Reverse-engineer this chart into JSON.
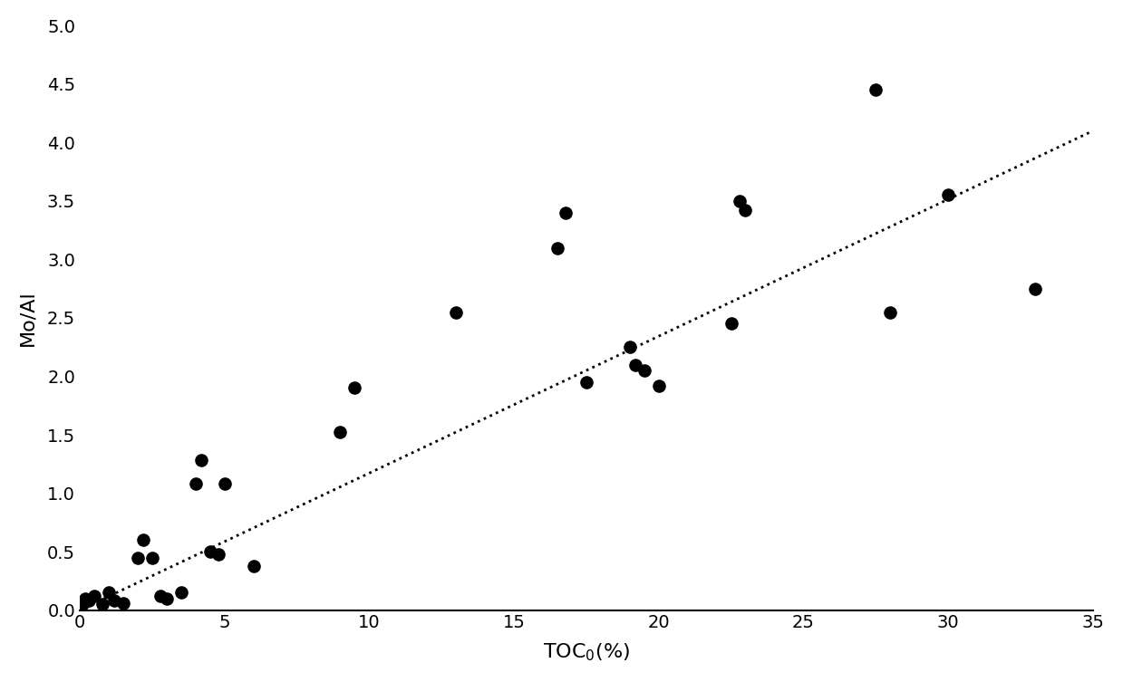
{
  "x": [
    0.1,
    0.2,
    0.3,
    0.5,
    0.8,
    1.0,
    1.2,
    1.5,
    2.0,
    2.2,
    2.5,
    2.8,
    3.0,
    3.5,
    4.0,
    4.2,
    4.5,
    4.8,
    5.0,
    6.0,
    9.0,
    9.5,
    13.0,
    16.5,
    16.8,
    17.5,
    19.0,
    19.2,
    19.5,
    20.0,
    22.5,
    22.8,
    23.0,
    27.5,
    28.0,
    30.0,
    33.0
  ],
  "y": [
    0.05,
    0.1,
    0.08,
    0.12,
    0.05,
    0.15,
    0.08,
    0.06,
    0.45,
    0.6,
    0.45,
    0.12,
    0.1,
    0.15,
    1.08,
    1.28,
    0.5,
    0.48,
    1.08,
    0.38,
    1.52,
    1.9,
    2.55,
    3.1,
    3.4,
    1.95,
    2.25,
    2.1,
    2.05,
    1.92,
    2.45,
    3.5,
    3.42,
    4.45,
    2.55,
    3.55,
    2.75
  ],
  "trendline_x": [
    0,
    35
  ],
  "trendline_y": [
    0.0,
    4.1
  ],
  "xlabel": "TOC$_0$(%)",
  "ylabel": "Mo/Al",
  "xlim": [
    0,
    35
  ],
  "ylim": [
    0,
    5
  ],
  "xticks": [
    0,
    5,
    10,
    15,
    20,
    25,
    30,
    35
  ],
  "yticks": [
    0,
    0.5,
    1,
    1.5,
    2,
    2.5,
    3,
    3.5,
    4,
    4.5,
    5
  ],
  "marker_size": 90,
  "marker_color": "black",
  "trendline_color": "black",
  "trendline_style": "dotted",
  "trendline_linewidth": 2.0,
  "background_color": "white",
  "xlabel_fontsize": 16,
  "ylabel_fontsize": 16,
  "tick_labelsize": 14
}
